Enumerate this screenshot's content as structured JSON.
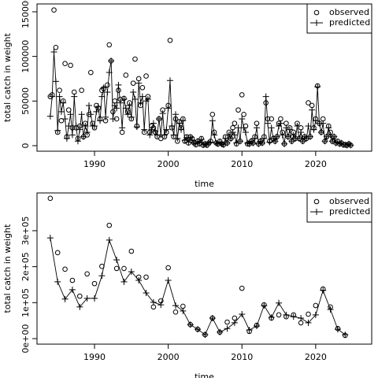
{
  "chart_data": [
    {
      "type": "line",
      "xlabel": "time",
      "ylabel": "total catch in weight",
      "xlim": [
        1982.2,
        2027.6
      ],
      "xticks": [
        1990,
        2000,
        2010,
        2020
      ],
      "ylim": [
        -6200,
        158800
      ],
      "yticks": [
        0,
        50000,
        100000,
        150000
      ],
      "legend": "topright",
      "x": [
        1984,
        1984.25,
        1984.5,
        1984.75,
        1985,
        1985.25,
        1985.5,
        1985.75,
        1986,
        1986.25,
        1986.5,
        1986.75,
        1987,
        1987.25,
        1987.5,
        1987.75,
        1988,
        1988.25,
        1988.5,
        1988.75,
        1989,
        1989.25,
        1989.5,
        1989.75,
        1990,
        1990.25,
        1990.5,
        1990.75,
        1991,
        1991.25,
        1991.5,
        1991.75,
        1992,
        1992.25,
        1992.5,
        1992.75,
        1993,
        1993.25,
        1993.5,
        1993.75,
        1994,
        1994.25,
        1994.5,
        1994.75,
        1995,
        1995.25,
        1995.5,
        1995.75,
        1996,
        1996.25,
        1996.5,
        1996.75,
        1997,
        1997.25,
        1997.5,
        1997.75,
        1998,
        1998.25,
        1998.5,
        1998.75,
        1999,
        1999.25,
        1999.5,
        1999.75,
        2000,
        2000.25,
        2000.5,
        2000.75,
        2001,
        2001.25,
        2001.5,
        2001.75,
        2002,
        2002.25,
        2002.5,
        2002.75,
        2003,
        2003.25,
        2003.5,
        2003.75,
        2004,
        2004.25,
        2004.5,
        2004.75,
        2005,
        2005.25,
        2005.5,
        2005.75,
        2006,
        2006.25,
        2006.5,
        2006.75,
        2007,
        2007.25,
        2007.5,
        2007.75,
        2008,
        2008.25,
        2008.5,
        2008.75,
        2009,
        2009.25,
        2009.5,
        2009.75,
        2010,
        2010.25,
        2010.5,
        2010.75,
        2011,
        2011.25,
        2011.5,
        2011.75,
        2012,
        2012.25,
        2012.5,
        2012.75,
        2013,
        2013.25,
        2013.5,
        2013.75,
        2014,
        2014.25,
        2014.5,
        2014.75,
        2015,
        2015.25,
        2015.5,
        2015.75,
        2016,
        2016.25,
        2016.5,
        2016.75,
        2017,
        2017.25,
        2017.5,
        2017.75,
        2018,
        2018.25,
        2018.5,
        2018.75,
        2019,
        2019.25,
        2019.5,
        2019.75,
        2020,
        2020.25,
        2020.5,
        2020.75,
        2021,
        2021.25,
        2021.5,
        2021.75,
        2022,
        2022.25,
        2022.5,
        2022.75,
        2023,
        2023.25,
        2023.5,
        2023.75,
        2024,
        2024.25,
        2024.5,
        2024.75
      ],
      "series": [
        {
          "name": "observed",
          "marker": "circle",
          "color": "#000000",
          "values": [
            55000,
            57000,
            152000,
            110000,
            15000,
            62000,
            28000,
            50000,
            92000,
            10000,
            40000,
            90000,
            20000,
            60000,
            20000,
            8000,
            22000,
            62000,
            10000,
            25000,
            12000,
            35000,
            82000,
            25000,
            20000,
            45000,
            42000,
            30000,
            62000,
            64000,
            28000,
            68000,
            113000,
            95000,
            38000,
            50000,
            30000,
            62000,
            52000,
            15000,
            53000,
            79000,
            38000,
            48000,
            30000,
            70000,
            97000,
            22000,
            75000,
            45000,
            65000,
            15000,
            78000,
            55000,
            15000,
            22000,
            20000,
            15000,
            10000,
            30000,
            8000,
            40000,
            10000,
            15000,
            45000,
            118000,
            20000,
            10000,
            30000,
            5000,
            27000,
            20000,
            30000,
            5000,
            10000,
            3000,
            10000,
            8000,
            3000,
            1000,
            5000,
            2000,
            8000,
            500,
            2000,
            500,
            3000,
            5000,
            35000,
            15000,
            3000,
            2000,
            5000,
            2000,
            1000,
            10000,
            3000,
            15000,
            8000,
            20000,
            25000,
            2000,
            40000,
            5000,
            57000,
            35000,
            22000,
            2000,
            2000,
            5000,
            3000,
            10000,
            25000,
            2000,
            5000,
            3000,
            10000,
            48000,
            30000,
            5000,
            30000,
            8000,
            5000,
            10000,
            25000,
            30000,
            15000,
            2000,
            25000,
            10000,
            20000,
            5000,
            15000,
            8000,
            25000,
            8000,
            20000,
            5000,
            10000,
            8000,
            48000,
            10000,
            45000,
            20000,
            30000,
            67000,
            25000,
            15000,
            30000,
            5000,
            10000,
            22000,
            15000,
            5000,
            10000,
            3000,
            5000,
            2000,
            3000,
            1000,
            1000,
            500,
            2000,
            500
          ]
        },
        {
          "name": "predicted",
          "marker": "plus",
          "color": "#000000",
          "values": [
            33000,
            55000,
            105000,
            72000,
            17000,
            55000,
            38000,
            48000,
            30000,
            8000,
            22000,
            35000,
            12000,
            55000,
            22000,
            5000,
            18000,
            35000,
            10000,
            22000,
            15000,
            45000,
            35000,
            22000,
            22000,
            38000,
            44000,
            28000,
            55000,
            65000,
            32000,
            60000,
            82000,
            95000,
            30000,
            45000,
            42000,
            68000,
            48000,
            20000,
            52000,
            42000,
            35000,
            45000,
            32000,
            60000,
            52000,
            21000,
            70000,
            48000,
            55000,
            18000,
            50000,
            52000,
            12000,
            18000,
            25000,
            16000,
            12000,
            30000,
            12000,
            36000,
            12000,
            18000,
            42000,
            73000,
            22000,
            12000,
            35000,
            8000,
            25000,
            18000,
            28000,
            6000,
            9000,
            4000,
            9000,
            6000,
            3000,
            2000,
            5000,
            3000,
            7000,
            1000,
            2000,
            1000,
            3000,
            4000,
            28000,
            12000,
            3000,
            2000,
            4000,
            2000,
            1000,
            8000,
            3000,
            12000,
            8000,
            15000,
            12000,
            3000,
            20000,
            5000,
            30000,
            20000,
            15000,
            3000,
            2000,
            5000,
            3000,
            8000,
            20000,
            2000,
            5000,
            3000,
            8000,
            55000,
            25000,
            4000,
            20000,
            8000,
            5000,
            10000,
            22000,
            25000,
            12000,
            2000,
            20000,
            10000,
            18000,
            5000,
            12000,
            8000,
            22000,
            8000,
            15000,
            5000,
            10000,
            8000,
            22000,
            10000,
            40000,
            18000,
            28000,
            66000,
            25000,
            15000,
            25000,
            5000,
            10000,
            20000,
            12000,
            5000,
            10000,
            3000,
            4000,
            2000,
            3000,
            1000,
            1000,
            500,
            2000,
            500
          ]
        }
      ]
    },
    {
      "type": "line",
      "xlabel": "time",
      "ylabel": "total catch in weight",
      "xlim": [
        1982.2,
        2027.6
      ],
      "xticks": [
        1990,
        2000,
        2010,
        2020
      ],
      "ylim": [
        -15300,
        405000
      ],
      "yticks": [
        {
          "value": 0,
          "label": "0e+00"
        },
        {
          "value": 100000,
          "label": "1e+05"
        },
        {
          "value": 200000,
          "label": "2e+05"
        },
        {
          "value": 300000,
          "label": "3e+05"
        }
      ],
      "legend": "topright",
      "x": [
        1984,
        1985,
        1986,
        1987,
        1988,
        1989,
        1990,
        1991,
        1992,
        1993,
        1994,
        1995,
        1996,
        1997,
        1998,
        1999,
        2000,
        2001,
        2002,
        2003,
        2004,
        2005,
        2006,
        2007,
        2008,
        2009,
        2010,
        2011,
        2012,
        2013,
        2014,
        2015,
        2016,
        2017,
        2018,
        2019,
        2020,
        2021,
        2022,
        2023,
        2024
      ],
      "series": [
        {
          "name": "observed",
          "marker": "circle",
          "color": "#000000",
          "values": [
            390000,
            239000,
            193000,
            162000,
            118000,
            180000,
            153000,
            201000,
            315000,
            195000,
            195000,
            243000,
            171000,
            171000,
            88000,
            105000,
            197000,
            74000,
            90000,
            39000,
            26000,
            11000,
            57000,
            18000,
            46000,
            57000,
            140000,
            20000,
            37000,
            94000,
            57000,
            66000,
            61000,
            66000,
            44000,
            68000,
            92000,
            138000,
            88000,
            28000,
            9000
          ]
        },
        {
          "name": "predicted",
          "marker": "plus",
          "color": "#000000",
          "values": [
            280000,
            158000,
            110000,
            136000,
            88000,
            112000,
            112000,
            175000,
            274000,
            219000,
            158000,
            186000,
            162000,
            127000,
            101000,
            94000,
            162000,
            92000,
            77000,
            39000,
            26000,
            11000,
            57000,
            18000,
            28000,
            44000,
            68000,
            24000,
            35000,
            92000,
            59000,
            99000,
            66000,
            61000,
            57000,
            44000,
            66000,
            134000,
            81000,
            26000,
            11000
          ]
        }
      ]
    }
  ]
}
